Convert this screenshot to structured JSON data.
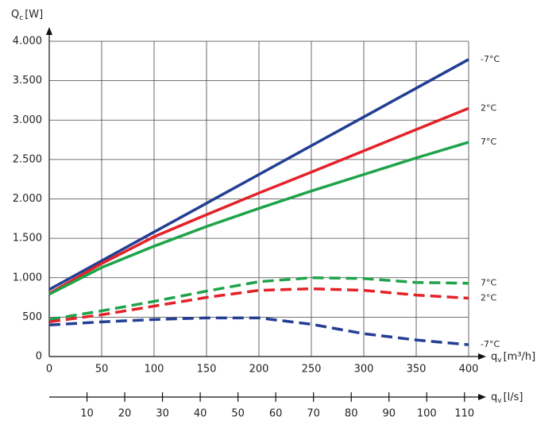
{
  "chart_data": {
    "type": "line",
    "ylabel": {
      "symbol": "Q",
      "subscript": "c",
      "unit": "[W]"
    },
    "xlabel": {
      "symbol": "q",
      "subscript": "v",
      "unit": "[m³/h]"
    },
    "x2label": {
      "symbol": "q",
      "subscript": "v",
      "unit": "[l/s]"
    },
    "x": [
      0,
      50,
      100,
      150,
      200,
      250,
      300,
      350,
      400
    ],
    "xlim": [
      0,
      400
    ],
    "xticks": [
      0,
      50,
      100,
      150,
      200,
      250,
      300,
      350,
      400
    ],
    "ylim": [
      0,
      4000
    ],
    "yticks": [
      0,
      500,
      {
        "value": 1000,
        "label": "1.000"
      },
      {
        "value": 1500,
        "label": "1.500"
      },
      {
        "value": 2000,
        "label": "2.000"
      },
      {
        "value": 2500,
        "label": "2.500"
      },
      {
        "value": 3000,
        "label": "3.000"
      },
      {
        "value": 3500,
        "label": "3.500"
      },
      {
        "value": 4000,
        "label": "4.000"
      }
    ],
    "x2lim": [
      0,
      111.1
    ],
    "x2ticks": [
      10,
      20,
      30,
      40,
      50,
      60,
      70,
      80,
      90,
      100,
      110
    ],
    "grid": true,
    "series": [
      {
        "name": "-7°C",
        "color": "#233e93",
        "dashed": false,
        "values": [
          850,
          1215,
          1580,
          1945,
          2310,
          2675,
          3040,
          3405,
          3770
        ]
      },
      {
        "name": "2°C",
        "color": "#e32228",
        "dashed": false,
        "values": [
          800,
          1180,
          1520,
          1800,
          2075,
          2340,
          2610,
          2880,
          3150
        ]
      },
      {
        "name": "7°C",
        "color": "#1ea34a",
        "dashed": false,
        "values": [
          790,
          1130,
          1400,
          1650,
          1880,
          2100,
          2310,
          2520,
          2720
        ]
      },
      {
        "name": "7°C",
        "color": "#1ea34a",
        "dashed": true,
        "values": [
          470,
          580,
          700,
          830,
          950,
          1000,
          990,
          940,
          930
        ]
      },
      {
        "name": "2°C",
        "color": "#e32228",
        "dashed": true,
        "values": [
          440,
          530,
          640,
          750,
          840,
          860,
          840,
          780,
          740
        ]
      },
      {
        "name": "-7°C",
        "color": "#233e93",
        "dashed": true,
        "values": [
          400,
          440,
          470,
          490,
          490,
          410,
          290,
          210,
          150
        ]
      }
    ]
  }
}
